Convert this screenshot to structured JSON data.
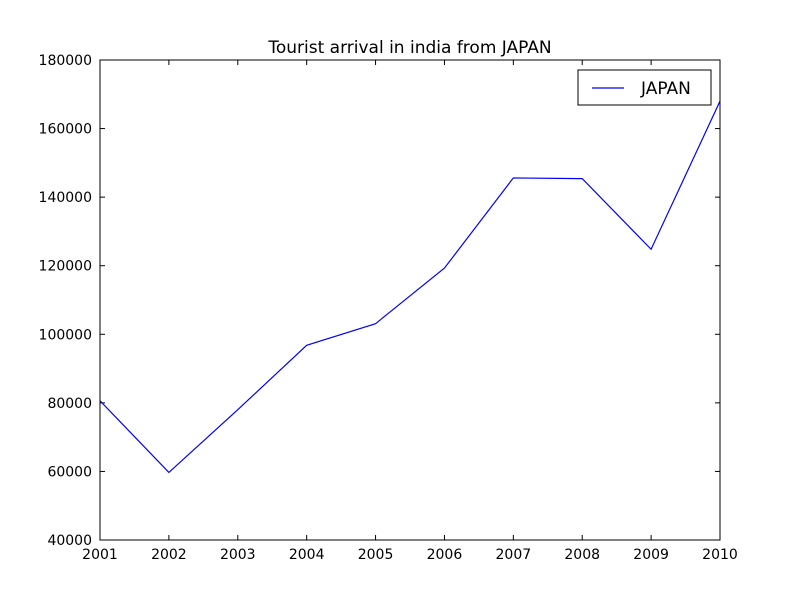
{
  "chart_data": {
    "type": "line",
    "title": "Tourist arrival in india from JAPAN",
    "xlabel": "",
    "ylabel": "",
    "x": [
      2001,
      2002,
      2003,
      2004,
      2005,
      2006,
      2007,
      2008,
      2009,
      2010
    ],
    "series": [
      {
        "name": "JAPAN",
        "color": "#0000ff",
        "values": [
          80600,
          59700,
          78000,
          96800,
          103100,
          119300,
          145600,
          145400,
          124800,
          168000
        ]
      }
    ],
    "xlim": [
      2001,
      2010
    ],
    "ylim": [
      40000,
      180000
    ],
    "xticks": [
      "2001",
      "2002",
      "2003",
      "2004",
      "2005",
      "2006",
      "2007",
      "2008",
      "2009",
      "2010"
    ],
    "yticks": [
      "40000",
      "60000",
      "80000",
      "100000",
      "120000",
      "140000",
      "160000",
      "180000"
    ],
    "grid": false,
    "legend_position": "top-right"
  }
}
